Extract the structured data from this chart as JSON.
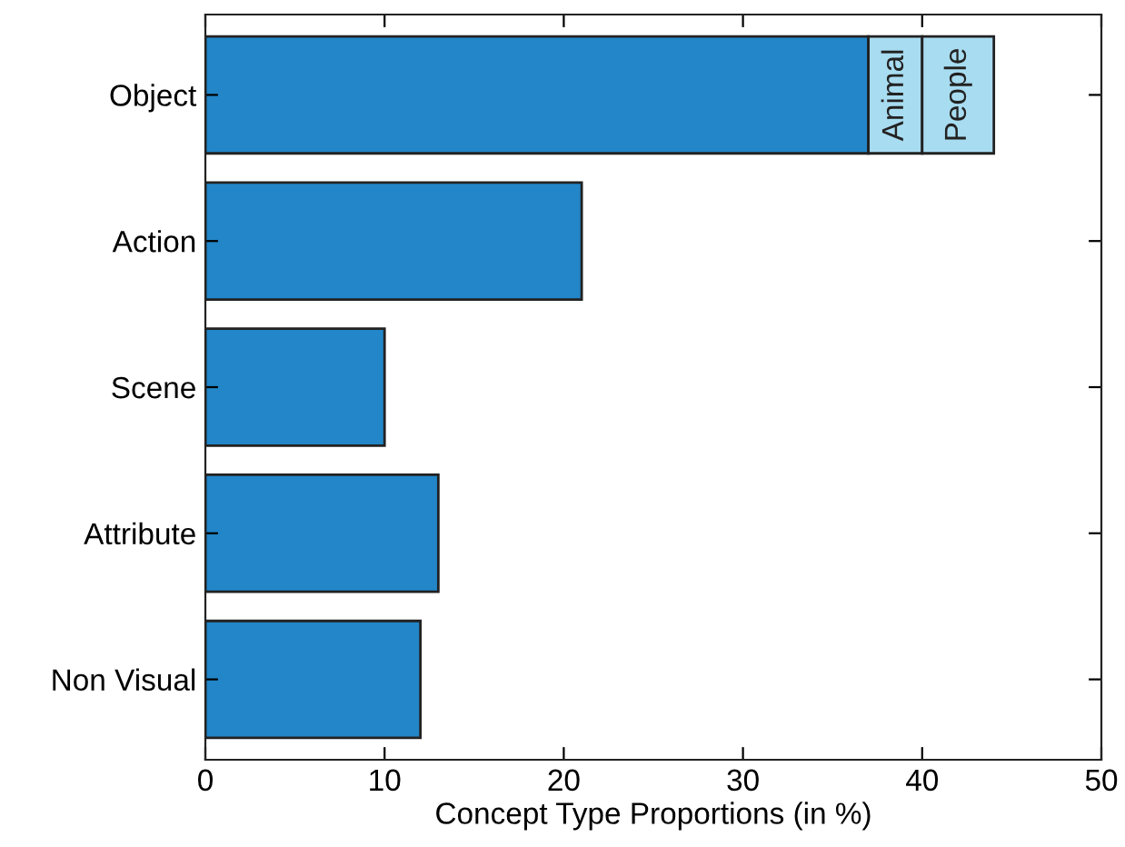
{
  "chart_data": {
    "type": "bar",
    "orientation": "horizontal",
    "stacked": true,
    "xlabel": "Concept Type Proportions (in %)",
    "categories": [
      "Object",
      "Action",
      "Scene",
      "Attribute",
      "Non Visual"
    ],
    "series": [
      {
        "color": "#2286c8",
        "values": [
          37,
          21,
          10,
          13,
          12
        ]
      },
      {
        "name": "Animal",
        "color": "#a8dcf0",
        "values": [
          3,
          null,
          null,
          null,
          null
        ]
      },
      {
        "name": "People",
        "color": "#a8dcf0",
        "values": [
          4,
          null,
          null,
          null,
          null
        ]
      }
    ],
    "xlim": [
      0,
      50
    ],
    "xticks": [
      0,
      10,
      20,
      30,
      40,
      50
    ],
    "grid": false,
    "legend": false
  }
}
